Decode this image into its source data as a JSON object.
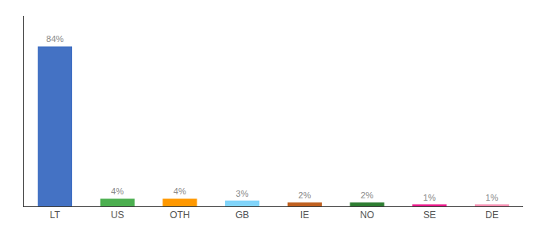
{
  "chart_data": {
    "type": "bar",
    "categories": [
      "LT",
      "US",
      "OTH",
      "GB",
      "IE",
      "NO",
      "SE",
      "DE"
    ],
    "values": [
      84,
      4,
      4,
      3,
      2,
      2,
      1,
      1
    ],
    "value_labels": [
      "84%",
      "4%",
      "4%",
      "3%",
      "2%",
      "2%",
      "1%",
      "1%"
    ],
    "colors": [
      "#4472c4",
      "#4caf50",
      "#ff9800",
      "#81d4fa",
      "#bf6020",
      "#2e7d32",
      "#e91e8c",
      "#f48fb1"
    ],
    "ylim": [
      0,
      100
    ],
    "grid": false,
    "data_labels": true,
    "tick_labels": "x"
  }
}
